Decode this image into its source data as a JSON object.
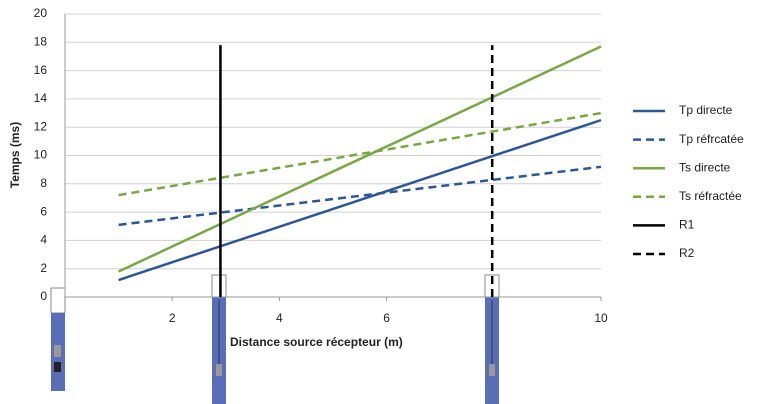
{
  "chart_data": {
    "type": "line",
    "y_label": "Temps (ms)",
    "x_label": "Distance source récepteur (m)",
    "xlim": [
      0,
      10
    ],
    "ylim": [
      0,
      20
    ],
    "xticks": [
      2,
      4,
      6,
      10
    ],
    "yticks": [
      0,
      2,
      4,
      6,
      8,
      10,
      12,
      14,
      16,
      18,
      20
    ],
    "grid": true,
    "legend": "right",
    "series": [
      {
        "name": "Tp directe",
        "color": "#2b5797",
        "dash": false,
        "x": [
          1,
          10
        ],
        "values": [
          1.2,
          12.5
        ]
      },
      {
        "name": "Tp réfrcatée",
        "color": "#2b5797",
        "dash": true,
        "x": [
          1,
          10
        ],
        "values": [
          5.1,
          9.2
        ]
      },
      {
        "name": "Ts directe",
        "color": "#77a843",
        "dash": false,
        "x": [
          1,
          10
        ],
        "values": [
          1.8,
          17.7
        ]
      },
      {
        "name": "Ts réfractée",
        "color": "#77a843",
        "dash": true,
        "x": [
          1,
          10
        ],
        "values": [
          7.2,
          13.0
        ]
      },
      {
        "name": "R1",
        "color": "#000000",
        "dash": false,
        "x": [
          2.9,
          2.9
        ],
        "values": [
          0,
          17.8
        ]
      },
      {
        "name": "R2",
        "color": "#000000",
        "dash": true,
        "x": [
          7.97,
          7.97
        ],
        "values": [
          0,
          17.8
        ]
      }
    ]
  }
}
